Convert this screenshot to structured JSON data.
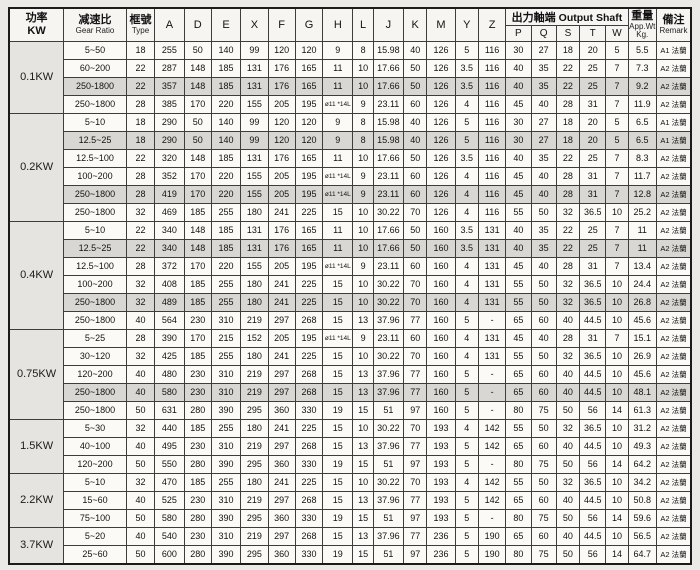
{
  "table": {
    "headers": {
      "power": {
        "line1": "功率",
        "line2": "KW"
      },
      "ratio": {
        "line1": "减速比",
        "line2": "Gear Ratio"
      },
      "type": {
        "line1": "框號",
        "line2": "Type"
      },
      "dims": [
        "A",
        "D",
        "E",
        "X",
        "F",
        "G",
        "H",
        "L",
        "J",
        "K",
        "M",
        "Y",
        "Z"
      ],
      "output_shaft": {
        "group_cjk": "出力軸端",
        "group_en": "Output Shaft",
        "cols": [
          "P",
          "Q",
          "S",
          "T",
          "W"
        ]
      },
      "weight": {
        "line1": "重量",
        "line2": "App.Wt",
        "line3": "Kg."
      },
      "remark": {
        "line1": "備注",
        "line2": "Remark"
      }
    },
    "groups": [
      {
        "power": "0.1KW",
        "rows": [
          {
            "ratio": "5~50",
            "type": "18",
            "dims": [
              "255",
              "50",
              "140",
              "99",
              "120",
              "120",
              "9",
              "8",
              "15.98",
              "40",
              "126",
              "5",
              "116"
            ],
            "shaft": [
              "30",
              "27",
              "18",
              "20",
              "5"
            ],
            "weight": "5.5",
            "remark": "A1 法蘭",
            "shaded": false
          },
          {
            "ratio": "60~200",
            "type": "22",
            "dims": [
              "287",
              "148",
              "185",
              "131",
              "176",
              "165",
              "11",
              "10",
              "17.66",
              "50",
              "126",
              "3.5",
              "116"
            ],
            "shaft": [
              "40",
              "35",
              "22",
              "25",
              "7"
            ],
            "weight": "7.3",
            "remark": "A2 法蘭",
            "shaded": false
          },
          {
            "ratio": "250-1800",
            "type": "22",
            "dims": [
              "357",
              "148",
              "185",
              "131",
              "176",
              "165",
              "11",
              "10",
              "17.66",
              "50",
              "126",
              "3.5",
              "116"
            ],
            "shaft": [
              "40",
              "35",
              "22",
              "25",
              "7"
            ],
            "weight": "9.2",
            "remark": "A2 法蘭",
            "shaded": true
          },
          {
            "ratio": "250~1800",
            "type": "28",
            "dims": [
              "385",
              "170",
              "220",
              "155",
              "205",
              "195",
              "ø11 *14L",
              "9",
              "23.11",
              "60",
              "126",
              "4",
              "116"
            ],
            "shaft": [
              "45",
              "40",
              "28",
              "31",
              "7"
            ],
            "weight": "11.9",
            "remark": "A2 法蘭",
            "shaded": false
          }
        ]
      },
      {
        "power": "0.2KW",
        "rows": [
          {
            "ratio": "5~10",
            "type": "18",
            "dims": [
              "290",
              "50",
              "140",
              "99",
              "120",
              "120",
              "9",
              "8",
              "15.98",
              "40",
              "126",
              "5",
              "116"
            ],
            "shaft": [
              "30",
              "27",
              "18",
              "20",
              "5"
            ],
            "weight": "6.5",
            "remark": "A1 法蘭",
            "shaded": false
          },
          {
            "ratio": "12.5~25",
            "type": "18",
            "dims": [
              "290",
              "50",
              "140",
              "99",
              "120",
              "120",
              "9",
              "8",
              "15.98",
              "40",
              "126",
              "5",
              "116"
            ],
            "shaft": [
              "30",
              "27",
              "18",
              "20",
              "5"
            ],
            "weight": "6.5",
            "remark": "A1 法蘭",
            "shaded": true
          },
          {
            "ratio": "12.5~100",
            "type": "22",
            "dims": [
              "320",
              "148",
              "185",
              "131",
              "176",
              "165",
              "11",
              "10",
              "17.66",
              "50",
              "126",
              "3.5",
              "116"
            ],
            "shaft": [
              "40",
              "35",
              "22",
              "25",
              "7"
            ],
            "weight": "8.3",
            "remark": "A2 法蘭",
            "shaded": false
          },
          {
            "ratio": "100~200",
            "type": "28",
            "dims": [
              "352",
              "170",
              "220",
              "155",
              "205",
              "195",
              "ø11 *14L",
              "9",
              "23.11",
              "60",
              "126",
              "4",
              "116"
            ],
            "shaft": [
              "45",
              "40",
              "28",
              "31",
              "7"
            ],
            "weight": "11.7",
            "remark": "A2 法蘭",
            "shaded": false
          },
          {
            "ratio": "250~1800",
            "type": "28",
            "dims": [
              "419",
              "170",
              "220",
              "155",
              "205",
              "195",
              "ø11 *14L",
              "9",
              "23.11",
              "60",
              "126",
              "4",
              "116"
            ],
            "shaft": [
              "45",
              "40",
              "28",
              "31",
              "7"
            ],
            "weight": "12.8",
            "remark": "A2 法蘭",
            "shaded": true
          },
          {
            "ratio": "250~1800",
            "type": "32",
            "dims": [
              "469",
              "185",
              "255",
              "180",
              "241",
              "225",
              "15",
              "10",
              "30.22",
              "70",
              "126",
              "4",
              "116"
            ],
            "shaft": [
              "55",
              "50",
              "32",
              "36.5",
              "10"
            ],
            "weight": "25.2",
            "remark": "A2 法蘭",
            "shaded": false
          }
        ]
      },
      {
        "power": "0.4KW",
        "rows": [
          {
            "ratio": "5~10",
            "type": "22",
            "dims": [
              "340",
              "148",
              "185",
              "131",
              "176",
              "165",
              "11",
              "10",
              "17.66",
              "50",
              "160",
              "3.5",
              "131"
            ],
            "shaft": [
              "40",
              "35",
              "22",
              "25",
              "7"
            ],
            "weight": "11",
            "remark": "A2 法蘭",
            "shaded": false
          },
          {
            "ratio": "12.5~25",
            "type": "22",
            "dims": [
              "340",
              "148",
              "185",
              "131",
              "176",
              "165",
              "11",
              "10",
              "17.66",
              "50",
              "160",
              "3.5",
              "131"
            ],
            "shaft": [
              "40",
              "35",
              "22",
              "25",
              "7"
            ],
            "weight": "11",
            "remark": "A2 法蘭",
            "shaded": true
          },
          {
            "ratio": "12.5~100",
            "type": "28",
            "dims": [
              "372",
              "170",
              "220",
              "155",
              "205",
              "195",
              "ø11 *14L",
              "9",
              "23.11",
              "60",
              "160",
              "4",
              "131"
            ],
            "shaft": [
              "45",
              "40",
              "28",
              "31",
              "7"
            ],
            "weight": "13.4",
            "remark": "A2 法蘭",
            "shaded": false
          },
          {
            "ratio": "100~200",
            "type": "32",
            "dims": [
              "408",
              "185",
              "255",
              "180",
              "241",
              "225",
              "15",
              "10",
              "30.22",
              "70",
              "160",
              "4",
              "131"
            ],
            "shaft": [
              "55",
              "50",
              "32",
              "36.5",
              "10"
            ],
            "weight": "24.4",
            "remark": "A2 法蘭",
            "shaded": false
          },
          {
            "ratio": "250~1800",
            "type": "32",
            "dims": [
              "489",
              "185",
              "255",
              "180",
              "241",
              "225",
              "15",
              "10",
              "30.22",
              "70",
              "160",
              "4",
              "131"
            ],
            "shaft": [
              "55",
              "50",
              "32",
              "36.5",
              "10"
            ],
            "weight": "26.8",
            "remark": "A2 法蘭",
            "shaded": true
          },
          {
            "ratio": "250~1800",
            "type": "40",
            "dims": [
              "564",
              "230",
              "310",
              "219",
              "297",
              "268",
              "15",
              "13",
              "37.96",
              "77",
              "160",
              "5",
              "-"
            ],
            "shaft": [
              "65",
              "60",
              "40",
              "44.5",
              "10"
            ],
            "weight": "45.6",
            "remark": "A2 法蘭",
            "shaded": false
          }
        ]
      },
      {
        "power": "0.75KW",
        "rows": [
          {
            "ratio": "5~25",
            "type": "28",
            "dims": [
              "390",
              "170",
              "215",
              "152",
              "205",
              "195",
              "ø11 *14L",
              "9",
              "23.11",
              "60",
              "160",
              "4",
              "131"
            ],
            "shaft": [
              "45",
              "40",
              "28",
              "31",
              "7"
            ],
            "weight": "15.1",
            "remark": "A2 法蘭",
            "shaded": false
          },
          {
            "ratio": "30~120",
            "type": "32",
            "dims": [
              "425",
              "185",
              "255",
              "180",
              "241",
              "225",
              "15",
              "10",
              "30.22",
              "70",
              "160",
              "4",
              "131"
            ],
            "shaft": [
              "55",
              "50",
              "32",
              "36.5",
              "10"
            ],
            "weight": "26.9",
            "remark": "A2 法蘭",
            "shaded": false
          },
          {
            "ratio": "120~200",
            "type": "40",
            "dims": [
              "480",
              "230",
              "310",
              "219",
              "297",
              "268",
              "15",
              "13",
              "37.96",
              "77",
              "160",
              "5",
              "-"
            ],
            "shaft": [
              "65",
              "60",
              "40",
              "44.5",
              "10"
            ],
            "weight": "45.6",
            "remark": "A2 法蘭",
            "shaded": false
          },
          {
            "ratio": "250~1800",
            "type": "40",
            "dims": [
              "580",
              "230",
              "310",
              "219",
              "297",
              "268",
              "15",
              "13",
              "37.96",
              "77",
              "160",
              "5",
              "-"
            ],
            "shaft": [
              "65",
              "60",
              "40",
              "44.5",
              "10"
            ],
            "weight": "48.1",
            "remark": "A2 法蘭",
            "shaded": true
          },
          {
            "ratio": "250~1800",
            "type": "50",
            "dims": [
              "631",
              "280",
              "390",
              "295",
              "360",
              "330",
              "19",
              "15",
              "51",
              "97",
              "160",
              "5",
              "-"
            ],
            "shaft": [
              "80",
              "75",
              "50",
              "56",
              "14"
            ],
            "weight": "61.3",
            "remark": "A2 法蘭",
            "shaded": false
          }
        ]
      },
      {
        "power": "1.5KW",
        "rows": [
          {
            "ratio": "5~30",
            "type": "32",
            "dims": [
              "440",
              "185",
              "255",
              "180",
              "241",
              "225",
              "15",
              "10",
              "30.22",
              "70",
              "193",
              "4",
              "142"
            ],
            "shaft": [
              "55",
              "50",
              "32",
              "36.5",
              "10"
            ],
            "weight": "31.2",
            "remark": "A2 法蘭",
            "shaded": false
          },
          {
            "ratio": "40~100",
            "type": "40",
            "dims": [
              "495",
              "230",
              "310",
              "219",
              "297",
              "268",
              "15",
              "13",
              "37.96",
              "77",
              "193",
              "5",
              "142"
            ],
            "shaft": [
              "65",
              "60",
              "40",
              "44.5",
              "10"
            ],
            "weight": "49.3",
            "remark": "A2 法蘭",
            "shaded": false
          },
          {
            "ratio": "120~200",
            "type": "50",
            "dims": [
              "550",
              "280",
              "390",
              "295",
              "360",
              "330",
              "19",
              "15",
              "51",
              "97",
              "193",
              "5",
              "-"
            ],
            "shaft": [
              "80",
              "75",
              "50",
              "56",
              "14"
            ],
            "weight": "64.2",
            "remark": "A2 法蘭",
            "shaded": false
          }
        ]
      },
      {
        "power": "2.2KW",
        "rows": [
          {
            "ratio": "5~10",
            "type": "32",
            "dims": [
              "470",
              "185",
              "255",
              "180",
              "241",
              "225",
              "15",
              "10",
              "30.22",
              "70",
              "193",
              "4",
              "142"
            ],
            "shaft": [
              "55",
              "50",
              "32",
              "36.5",
              "10"
            ],
            "weight": "34.2",
            "remark": "A2 法蘭",
            "shaded": false
          },
          {
            "ratio": "15~60",
            "type": "40",
            "dims": [
              "525",
              "230",
              "310",
              "219",
              "297",
              "268",
              "15",
              "13",
              "37.96",
              "77",
              "193",
              "5",
              "142"
            ],
            "shaft": [
              "65",
              "60",
              "40",
              "44.5",
              "10"
            ],
            "weight": "50.8",
            "remark": "A2 法蘭",
            "shaded": false
          },
          {
            "ratio": "75~100",
            "type": "50",
            "dims": [
              "580",
              "280",
              "390",
              "295",
              "360",
              "330",
              "19",
              "15",
              "51",
              "97",
              "193",
              "5",
              "-"
            ],
            "shaft": [
              "80",
              "75",
              "50",
              "56",
              "14"
            ],
            "weight": "59.6",
            "remark": "A2 法蘭",
            "shaded": false
          }
        ]
      },
      {
        "power": "3.7KW",
        "rows": [
          {
            "ratio": "5~20",
            "type": "40",
            "dims": [
              "540",
              "230",
              "310",
              "219",
              "297",
              "268",
              "15",
              "13",
              "37.96",
              "77",
              "236",
              "5",
              "190"
            ],
            "shaft": [
              "65",
              "60",
              "40",
              "44.5",
              "10"
            ],
            "weight": "56.5",
            "remark": "A2 法蘭",
            "shaded": false
          },
          {
            "ratio": "25~60",
            "type": "50",
            "dims": [
              "600",
              "280",
              "390",
              "295",
              "360",
              "330",
              "19",
              "15",
              "51",
              "97",
              "236",
              "5",
              "190"
            ],
            "shaft": [
              "80",
              "75",
              "50",
              "56",
              "14"
            ],
            "weight": "64.7",
            "remark": "A2 法蘭",
            "shaded": false
          }
        ]
      }
    ]
  }
}
